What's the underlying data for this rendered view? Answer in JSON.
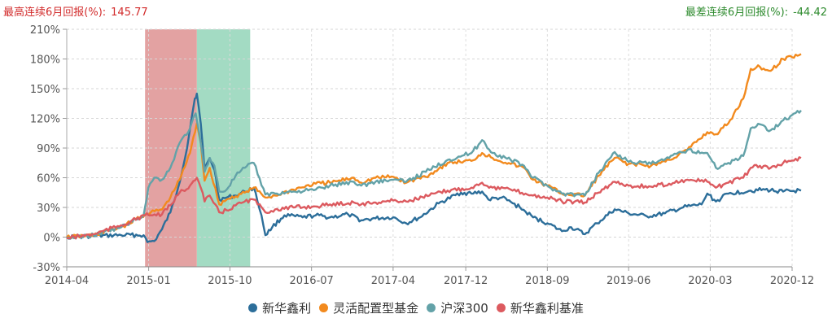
{
  "header": {
    "max_label": "最高连续6月回报(%):",
    "max_value": "145.77",
    "min_label": "最差连续6月回报(%):",
    "min_value": "-44.42"
  },
  "colors": {
    "max": "#d22b2b",
    "min": "#2e8b2e",
    "band_max": "#e3a2a2",
    "band_min": "#a3dbc3"
  },
  "chart_data": {
    "type": "line",
    "title": "",
    "xlabel": "",
    "ylabel": "",
    "x_ticks": [
      "2014-04",
      "2015-01",
      "2015-10",
      "2016-07",
      "2017-04",
      "2017-12",
      "2018-09",
      "2019-06",
      "2020-03",
      "2020-12"
    ],
    "y_ticks": [
      "-30%",
      "0%",
      "30%",
      "60%",
      "90%",
      "120%",
      "150%",
      "180%",
      "210%"
    ],
    "ylim": [
      -30,
      210
    ],
    "xlim": [
      "2014-04",
      "2020-12"
    ],
    "grid": true,
    "legend_position": "bottom",
    "highlight_bands": [
      {
        "name": "最高连续6月回报",
        "start": "2014-12-20",
        "end": "2015-06-12"
      },
      {
        "name": "最差连续6月回报",
        "start": "2015-06-12",
        "end": "2015-12-08"
      }
    ],
    "series": [
      {
        "name": "新华鑫利",
        "color": "#2c6e9a",
        "points": [
          [
            "2014-04-01",
            0
          ],
          [
            "2014-07-01",
            1
          ],
          [
            "2014-10-01",
            2
          ],
          [
            "2014-12-15",
            2
          ],
          [
            "2014-12-28",
            -5
          ],
          [
            "2015-01-20",
            -4
          ],
          [
            "2015-02-15",
            8
          ],
          [
            "2015-03-15",
            25
          ],
          [
            "2015-04-10",
            50
          ],
          [
            "2015-05-10",
            90
          ],
          [
            "2015-05-25",
            120
          ],
          [
            "2015-06-05",
            140
          ],
          [
            "2015-06-12",
            145
          ],
          [
            "2015-06-25",
            115
          ],
          [
            "2015-07-08",
            68
          ],
          [
            "2015-07-25",
            80
          ],
          [
            "2015-08-10",
            68
          ],
          [
            "2015-08-26",
            38
          ],
          [
            "2015-09-20",
            40
          ],
          [
            "2015-10-20",
            42
          ],
          [
            "2015-11-20",
            46
          ],
          [
            "2015-12-20",
            50
          ],
          [
            "2016-01-15",
            22
          ],
          [
            "2016-01-28",
            2
          ],
          [
            "2016-02-20",
            10
          ],
          [
            "2016-04-01",
            22
          ],
          [
            "2016-06-01",
            20
          ],
          [
            "2016-07-15",
            22
          ],
          [
            "2016-09-01",
            20
          ],
          [
            "2016-11-01",
            23
          ],
          [
            "2016-12-15",
            17
          ],
          [
            "2017-02-01",
            19
          ],
          [
            "2017-04-01",
            20
          ],
          [
            "2017-05-15",
            14
          ],
          [
            "2017-07-01",
            20
          ],
          [
            "2017-09-01",
            34
          ],
          [
            "2017-11-15",
            45
          ],
          [
            "2017-12-20",
            44
          ],
          [
            "2018-01-25",
            46
          ],
          [
            "2018-02-15",
            38
          ],
          [
            "2018-04-01",
            40
          ],
          [
            "2018-06-01",
            30
          ],
          [
            "2018-07-15",
            20
          ],
          [
            "2018-09-01",
            14
          ],
          [
            "2018-10-20",
            6
          ],
          [
            "2018-11-20",
            10
          ],
          [
            "2019-01-05",
            3
          ],
          [
            "2019-02-15",
            14
          ],
          [
            "2019-04-15",
            28
          ],
          [
            "2019-06-01",
            24
          ],
          [
            "2019-08-01",
            21
          ],
          [
            "2019-10-01",
            24
          ],
          [
            "2019-12-01",
            30
          ],
          [
            "2020-02-01",
            33
          ],
          [
            "2020-02-20",
            44
          ],
          [
            "2020-03-20",
            36
          ],
          [
            "2020-05-01",
            44
          ],
          [
            "2020-07-15",
            47
          ],
          [
            "2020-09-01",
            48
          ],
          [
            "2020-11-01",
            46
          ],
          [
            "2020-12-31",
            47
          ]
        ]
      },
      {
        "name": "灵活配置型基金",
        "color": "#f28a1e",
        "points": [
          [
            "2014-04-01",
            0
          ],
          [
            "2014-07-01",
            2
          ],
          [
            "2014-10-01",
            10
          ],
          [
            "2014-12-20",
            23
          ],
          [
            "2015-02-15",
            28
          ],
          [
            "2015-03-15",
            40
          ],
          [
            "2015-04-15",
            58
          ],
          [
            "2015-05-20",
            85
          ],
          [
            "2015-06-12",
            115
          ],
          [
            "2015-06-25",
            95
          ],
          [
            "2015-07-08",
            57
          ],
          [
            "2015-07-25",
            70
          ],
          [
            "2015-08-26",
            33
          ],
          [
            "2015-09-20",
            38
          ],
          [
            "2015-11-20",
            45
          ],
          [
            "2015-12-20",
            50
          ],
          [
            "2016-01-28",
            40
          ],
          [
            "2016-03-01",
            42
          ],
          [
            "2016-05-01",
            48
          ],
          [
            "2016-07-15",
            54
          ],
          [
            "2016-09-01",
            55
          ],
          [
            "2016-11-20",
            60
          ],
          [
            "2016-12-15",
            55
          ],
          [
            "2017-02-01",
            60
          ],
          [
            "2017-04-01",
            61
          ],
          [
            "2017-05-15",
            55
          ],
          [
            "2017-08-01",
            63
          ],
          [
            "2017-10-01",
            75
          ],
          [
            "2017-12-20",
            77
          ],
          [
            "2018-01-25",
            85
          ],
          [
            "2018-03-01",
            80
          ],
          [
            "2018-05-01",
            74
          ],
          [
            "2018-06-15",
            70
          ],
          [
            "2018-07-15",
            58
          ],
          [
            "2018-09-01",
            52
          ],
          [
            "2018-10-20",
            44
          ],
          [
            "2019-01-05",
            42
          ],
          [
            "2019-02-20",
            62
          ],
          [
            "2019-04-15",
            80
          ],
          [
            "2019-06-01",
            74
          ],
          [
            "2019-08-15",
            72
          ],
          [
            "2019-10-15",
            78
          ],
          [
            "2019-12-15",
            88
          ],
          [
            "2020-02-20",
            106
          ],
          [
            "2020-03-20",
            104
          ],
          [
            "2020-05-01",
            115
          ],
          [
            "2020-06-20",
            140
          ],
          [
            "2020-07-15",
            170
          ],
          [
            "2020-08-15",
            172
          ],
          [
            "2020-09-20",
            168
          ],
          [
            "2020-11-01",
            180
          ],
          [
            "2020-12-31",
            185
          ]
        ]
      },
      {
        "name": "沪深300",
        "color": "#63a2a8",
        "points": [
          [
            "2014-04-01",
            -1
          ],
          [
            "2014-07-01",
            2
          ],
          [
            "2014-10-01",
            10
          ],
          [
            "2014-12-15",
            22
          ],
          [
            "2014-12-31",
            50
          ],
          [
            "2015-01-20",
            60
          ],
          [
            "2015-02-15",
            58
          ],
          [
            "2015-03-15",
            70
          ],
          [
            "2015-04-15",
            95
          ],
          [
            "2015-05-20",
            110
          ],
          [
            "2015-06-08",
            125
          ],
          [
            "2015-06-25",
            95
          ],
          [
            "2015-07-08",
            66
          ],
          [
            "2015-07-25",
            80
          ],
          [
            "2015-08-10",
            72
          ],
          [
            "2015-08-26",
            46
          ],
          [
            "2015-09-20",
            48
          ],
          [
            "2015-10-20",
            62
          ],
          [
            "2015-11-20",
            70
          ],
          [
            "2015-12-20",
            75
          ],
          [
            "2016-01-28",
            43
          ],
          [
            "2016-03-01",
            44
          ],
          [
            "2016-05-01",
            46
          ],
          [
            "2016-07-15",
            48
          ],
          [
            "2016-09-01",
            52
          ],
          [
            "2016-11-20",
            56
          ],
          [
            "2016-12-15",
            52
          ],
          [
            "2017-02-01",
            56
          ],
          [
            "2017-04-01",
            58
          ],
          [
            "2017-05-15",
            56
          ],
          [
            "2017-08-01",
            68
          ],
          [
            "2017-10-01",
            78
          ],
          [
            "2017-12-20",
            85
          ],
          [
            "2018-01-25",
            98
          ],
          [
            "2018-03-01",
            85
          ],
          [
            "2018-05-01",
            78
          ],
          [
            "2018-06-15",
            72
          ],
          [
            "2018-07-15",
            60
          ],
          [
            "2018-09-01",
            52
          ],
          [
            "2018-10-20",
            44
          ],
          [
            "2019-01-05",
            42
          ],
          [
            "2019-02-20",
            65
          ],
          [
            "2019-04-15",
            86
          ],
          [
            "2019-06-01",
            76
          ],
          [
            "2019-08-15",
            74
          ],
          [
            "2019-10-15",
            80
          ],
          [
            "2019-12-15",
            88
          ],
          [
            "2020-02-20",
            85
          ],
          [
            "2020-03-20",
            70
          ],
          [
            "2020-05-01",
            75
          ],
          [
            "2020-06-20",
            82
          ],
          [
            "2020-07-15",
            110
          ],
          [
            "2020-08-15",
            114
          ],
          [
            "2020-09-20",
            108
          ],
          [
            "2020-11-01",
            118
          ],
          [
            "2020-12-31",
            128
          ]
        ]
      },
      {
        "name": "新华鑫利基准",
        "color": "#dc5a5f",
        "points": [
          [
            "2014-04-01",
            -1
          ],
          [
            "2014-07-01",
            3
          ],
          [
            "2014-10-01",
            12
          ],
          [
            "2014-12-20",
            22
          ],
          [
            "2015-02-15",
            23
          ],
          [
            "2015-03-15",
            32
          ],
          [
            "2015-04-15",
            45
          ],
          [
            "2015-05-20",
            52
          ],
          [
            "2015-06-12",
            60
          ],
          [
            "2015-06-25",
            50
          ],
          [
            "2015-07-08",
            36
          ],
          [
            "2015-07-25",
            42
          ],
          [
            "2015-08-26",
            25
          ],
          [
            "2015-09-20",
            27
          ],
          [
            "2015-10-20",
            32
          ],
          [
            "2015-11-20",
            36
          ],
          [
            "2015-12-20",
            38
          ],
          [
            "2016-01-28",
            25
          ],
          [
            "2016-03-01",
            28
          ],
          [
            "2016-05-01",
            30
          ],
          [
            "2016-07-15",
            31
          ],
          [
            "2016-09-01",
            33
          ],
          [
            "2016-11-20",
            35
          ],
          [
            "2016-12-15",
            33
          ],
          [
            "2017-02-01",
            35
          ],
          [
            "2017-04-01",
            37
          ],
          [
            "2017-05-15",
            36
          ],
          [
            "2017-08-01",
            42
          ],
          [
            "2017-10-01",
            47
          ],
          [
            "2017-12-20",
            50
          ],
          [
            "2018-01-25",
            55
          ],
          [
            "2018-03-01",
            50
          ],
          [
            "2018-05-01",
            48
          ],
          [
            "2018-07-15",
            42
          ],
          [
            "2018-09-01",
            40
          ],
          [
            "2018-10-20",
            36
          ],
          [
            "2019-01-05",
            35
          ],
          [
            "2019-02-20",
            45
          ],
          [
            "2019-04-15",
            56
          ],
          [
            "2019-06-01",
            52
          ],
          [
            "2019-08-15",
            51
          ],
          [
            "2019-10-15",
            54
          ],
          [
            "2019-12-15",
            58
          ],
          [
            "2020-02-20",
            56
          ],
          [
            "2020-03-20",
            50
          ],
          [
            "2020-05-01",
            55
          ],
          [
            "2020-06-20",
            60
          ],
          [
            "2020-07-15",
            70
          ],
          [
            "2020-08-15",
            72
          ],
          [
            "2020-09-20",
            70
          ],
          [
            "2020-11-01",
            75
          ],
          [
            "2020-12-31",
            80
          ]
        ]
      }
    ]
  }
}
